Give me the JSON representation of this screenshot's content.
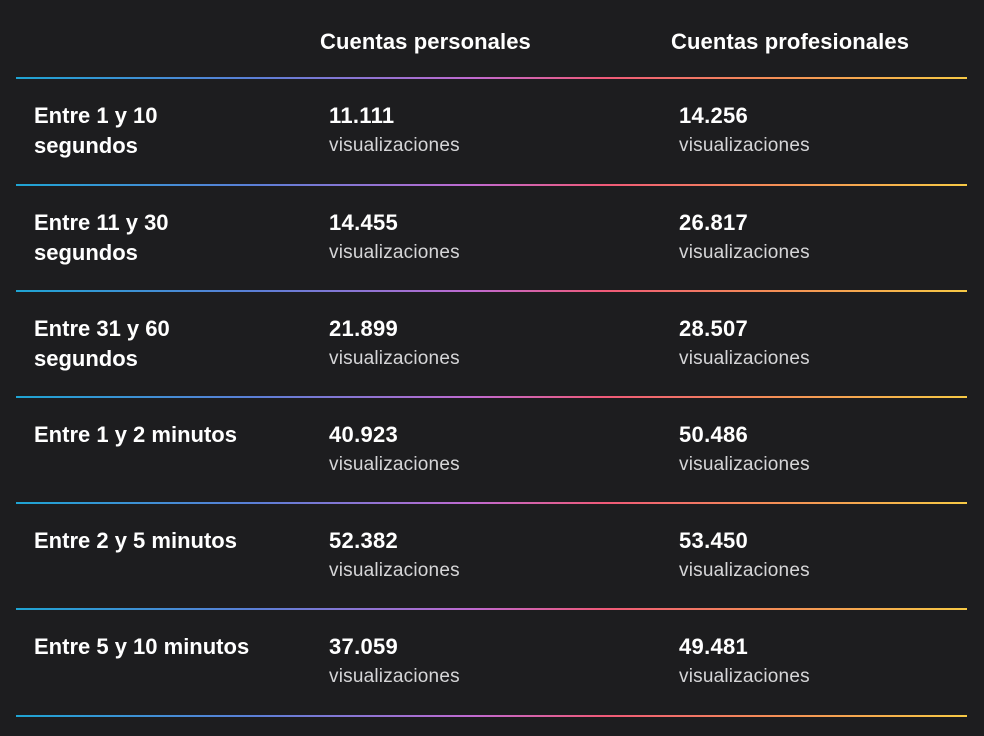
{
  "header": {
    "col1": "Cuentas personales",
    "col2": "Cuentas profesionales"
  },
  "unit": "visualizaciones",
  "rows": [
    {
      "label": "Entre 1 y 10 segundos",
      "personal": "11.111",
      "professional": "14.256",
      "personal_unit": "visualizaciones",
      "professional_unit": "visualizaciones"
    },
    {
      "label": "Entre 11 y 30 segundos",
      "personal": "14.455",
      "professional": "26.817",
      "personal_unit": "visualizaciones",
      "professional_unit": "visualizaciones"
    },
    {
      "label": "Entre 31 y 60 segundos",
      "personal": "21.899",
      "professional": "28.507",
      "personal_unit": "visualizaciones",
      "professional_unit": "visualizaciones"
    },
    {
      "label": "Entre 1 y 2 minutos",
      "personal": "40.923",
      "professional": "50.486",
      "personal_unit": "visualizaciones",
      "professional_unit": "visualizaciones"
    },
    {
      "label": "Entre 2 y 5 minutos",
      "personal": "52.382",
      "professional": "53.450",
      "personal_unit": "visualizaciones",
      "professional_unit": "visualizaciones"
    },
    {
      "label": "Entre 5 y 10 minutos",
      "personal": "37.059",
      "professional": "49.481",
      "personal_unit": "visualizaciones",
      "professional_unit": "visualizaciones"
    }
  ],
  "colors": {
    "background": "#1d1d1f",
    "text": "#ffffff",
    "unit_text": "#d6d6d8",
    "gradient": [
      "#1fa4d3",
      "#5b7fd6",
      "#c06ad0",
      "#f05a78",
      "#f48a58",
      "#f7c945"
    ]
  }
}
